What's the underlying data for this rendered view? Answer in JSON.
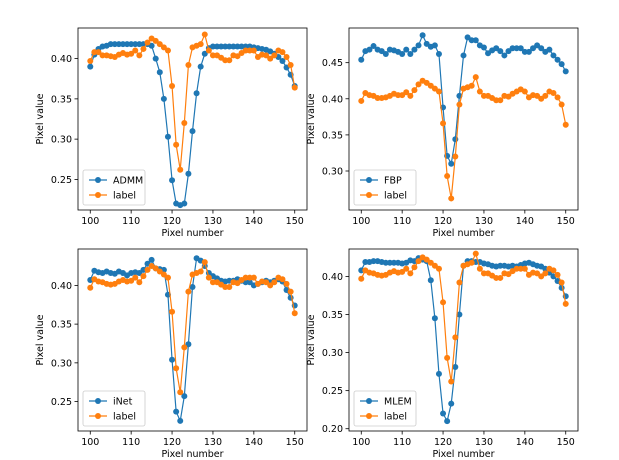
{
  "colors": {
    "primary": "#1f77b4",
    "label": "#ff7f0e"
  },
  "chart_data": [
    {
      "type": "line",
      "xlabel": "Pixel number",
      "ylabel": "Pixel value",
      "xlim": [
        97,
        153
      ],
      "ylim": [
        0.212,
        0.438
      ],
      "xticks": [
        100,
        110,
        120,
        130,
        140,
        150
      ],
      "yticks": [
        0.25,
        0.3,
        0.35,
        0.4
      ],
      "ytick_labels": [
        "0.25",
        "0.30",
        "0.35",
        "0.40"
      ],
      "legend_position": "lower-left",
      "x": [
        100,
        101,
        102,
        103,
        104,
        105,
        106,
        107,
        108,
        109,
        110,
        111,
        112,
        113,
        114,
        115,
        116,
        117,
        118,
        119,
        120,
        121,
        122,
        123,
        124,
        125,
        126,
        127,
        128,
        129,
        130,
        131,
        132,
        133,
        134,
        135,
        136,
        137,
        138,
        139,
        140,
        141,
        142,
        143,
        144,
        145,
        146,
        147,
        148,
        149,
        150
      ],
      "series": [
        {
          "name": "ADMM",
          "color": "#1f77b4",
          "values": [
            0.39,
            0.405,
            0.412,
            0.415,
            0.416,
            0.418,
            0.418,
            0.418,
            0.418,
            0.418,
            0.418,
            0.418,
            0.418,
            0.418,
            0.418,
            0.416,
            0.4,
            0.383,
            0.35,
            0.303,
            0.249,
            0.22,
            0.218,
            0.22,
            0.257,
            0.31,
            0.357,
            0.39,
            0.406,
            0.413,
            0.415,
            0.415,
            0.415,
            0.415,
            0.415,
            0.415,
            0.415,
            0.415,
            0.415,
            0.415,
            0.414,
            0.413,
            0.412,
            0.411,
            0.409,
            0.406,
            0.402,
            0.397,
            0.389,
            0.38,
            0.366
          ]
        },
        {
          "name": "label",
          "color": "#ff7f0e",
          "values": [
            0.397,
            0.408,
            0.408,
            0.404,
            0.404,
            0.403,
            0.402,
            0.405,
            0.407,
            0.405,
            0.406,
            0.41,
            0.404,
            0.412,
            0.42,
            0.425,
            0.422,
            0.418,
            0.414,
            0.41,
            0.366,
            0.293,
            0.262,
            0.32,
            0.392,
            0.414,
            0.416,
            0.418,
            0.43,
            0.41,
            0.404,
            0.404,
            0.401,
            0.398,
            0.398,
            0.404,
            0.403,
            0.407,
            0.41,
            0.41,
            0.41,
            0.402,
            0.405,
            0.404,
            0.4,
            0.404,
            0.41,
            0.408,
            0.402,
            0.392,
            0.364
          ]
        }
      ]
    },
    {
      "type": "line",
      "xlabel": "Pixel number",
      "ylabel": "Pixel value",
      "xlim": [
        97,
        153
      ],
      "ylim": [
        0.246,
        0.498
      ],
      "xticks": [
        100,
        110,
        120,
        130,
        140,
        150
      ],
      "yticks": [
        0.3,
        0.35,
        0.4,
        0.45
      ],
      "ytick_labels": [
        "0.30",
        "0.35",
        "0.40",
        "0.45"
      ],
      "legend_position": "lower-left",
      "x": [
        100,
        101,
        102,
        103,
        104,
        105,
        106,
        107,
        108,
        109,
        110,
        111,
        112,
        113,
        114,
        115,
        116,
        117,
        118,
        119,
        120,
        121,
        122,
        123,
        124,
        125,
        126,
        127,
        128,
        129,
        130,
        131,
        132,
        133,
        134,
        135,
        136,
        137,
        138,
        139,
        140,
        141,
        142,
        143,
        144,
        145,
        146,
        147,
        148,
        149,
        150
      ],
      "series": [
        {
          "name": "FBP",
          "color": "#1f77b4",
          "values": [
            0.454,
            0.466,
            0.468,
            0.473,
            0.468,
            0.466,
            0.462,
            0.468,
            0.467,
            0.465,
            0.462,
            0.468,
            0.462,
            0.468,
            0.474,
            0.488,
            0.476,
            0.472,
            0.474,
            0.462,
            0.388,
            0.321,
            0.31,
            0.344,
            0.404,
            0.46,
            0.485,
            0.481,
            0.481,
            0.474,
            0.471,
            0.463,
            0.467,
            0.47,
            0.466,
            0.46,
            0.466,
            0.47,
            0.47,
            0.47,
            0.465,
            0.465,
            0.47,
            0.474,
            0.47,
            0.465,
            0.468,
            0.46,
            0.454,
            0.448,
            0.438
          ]
        },
        {
          "name": "label",
          "color": "#ff7f0e",
          "values": [
            0.397,
            0.408,
            0.405,
            0.404,
            0.401,
            0.401,
            0.402,
            0.404,
            0.407,
            0.405,
            0.405,
            0.409,
            0.404,
            0.412,
            0.42,
            0.425,
            0.422,
            0.418,
            0.414,
            0.41,
            0.366,
            0.293,
            0.262,
            0.32,
            0.392,
            0.414,
            0.416,
            0.418,
            0.43,
            0.41,
            0.404,
            0.404,
            0.401,
            0.398,
            0.398,
            0.404,
            0.403,
            0.407,
            0.41,
            0.413,
            0.41,
            0.402,
            0.405,
            0.404,
            0.4,
            0.404,
            0.41,
            0.408,
            0.402,
            0.392,
            0.364
          ]
        }
      ]
    },
    {
      "type": "line",
      "xlabel": "Pixel number",
      "ylabel": "Pixel value",
      "xlim": [
        97,
        153
      ],
      "ylim": [
        0.212,
        0.447
      ],
      "xticks": [
        100,
        110,
        120,
        130,
        140,
        150
      ],
      "yticks": [
        0.25,
        0.3,
        0.35,
        0.4
      ],
      "ytick_labels": [
        "0.25",
        "0.30",
        "0.35",
        "0.40"
      ],
      "legend_position": "lower-left",
      "x": [
        100,
        101,
        102,
        103,
        104,
        105,
        106,
        107,
        108,
        109,
        110,
        111,
        112,
        113,
        114,
        115,
        116,
        117,
        118,
        119,
        120,
        121,
        122,
        123,
        124,
        125,
        126,
        127,
        128,
        129,
        130,
        131,
        132,
        133,
        134,
        135,
        136,
        137,
        138,
        139,
        140,
        141,
        142,
        143,
        144,
        145,
        146,
        147,
        148,
        149,
        150
      ],
      "series": [
        {
          "name": "iNet",
          "color": "#1f77b4",
          "values": [
            0.407,
            0.419,
            0.417,
            0.416,
            0.418,
            0.416,
            0.415,
            0.418,
            0.416,
            0.413,
            0.416,
            0.417,
            0.416,
            0.42,
            0.428,
            0.433,
            0.422,
            0.421,
            0.42,
            0.388,
            0.304,
            0.237,
            0.225,
            0.257,
            0.324,
            0.398,
            0.435,
            0.432,
            0.425,
            0.416,
            0.412,
            0.409,
            0.406,
            0.405,
            0.406,
            0.406,
            0.408,
            0.406,
            0.404,
            0.404,
            0.4,
            0.402,
            0.404,
            0.406,
            0.404,
            0.406,
            0.408,
            0.405,
            0.394,
            0.384,
            0.374
          ]
        },
        {
          "name": "label",
          "color": "#ff7f0e",
          "values": [
            0.397,
            0.408,
            0.405,
            0.404,
            0.402,
            0.401,
            0.402,
            0.405,
            0.407,
            0.405,
            0.406,
            0.41,
            0.404,
            0.412,
            0.42,
            0.425,
            0.422,
            0.418,
            0.414,
            0.41,
            0.366,
            0.293,
            0.262,
            0.32,
            0.392,
            0.414,
            0.416,
            0.418,
            0.43,
            0.41,
            0.404,
            0.404,
            0.401,
            0.398,
            0.398,
            0.404,
            0.403,
            0.407,
            0.41,
            0.41,
            0.41,
            0.402,
            0.405,
            0.404,
            0.4,
            0.404,
            0.41,
            0.408,
            0.402,
            0.392,
            0.364
          ]
        }
      ]
    },
    {
      "type": "line",
      "xlabel": "Pixel number",
      "ylabel": "Pixel value",
      "xlim": [
        97,
        153
      ],
      "ylim": [
        0.197,
        0.436
      ],
      "xticks": [
        100,
        110,
        120,
        130,
        140,
        150
      ],
      "yticks": [
        0.2,
        0.25,
        0.3,
        0.35,
        0.4
      ],
      "ytick_labels": [
        "0.20",
        "0.25",
        "0.30",
        "0.35",
        "0.40"
      ],
      "legend_position": "lower-left",
      "x": [
        100,
        101,
        102,
        103,
        104,
        105,
        106,
        107,
        108,
        109,
        110,
        111,
        112,
        113,
        114,
        115,
        116,
        117,
        118,
        119,
        120,
        121,
        122,
        123,
        124,
        125,
        126,
        127,
        128,
        129,
        130,
        131,
        132,
        133,
        134,
        135,
        136,
        137,
        138,
        139,
        140,
        141,
        142,
        143,
        144,
        145,
        146,
        147,
        148,
        149,
        150
      ],
      "series": [
        {
          "name": "MLEM",
          "color": "#1f77b4",
          "values": [
            0.408,
            0.419,
            0.419,
            0.42,
            0.42,
            0.419,
            0.418,
            0.418,
            0.418,
            0.418,
            0.417,
            0.418,
            0.421,
            0.42,
            0.424,
            0.422,
            0.42,
            0.395,
            0.345,
            0.272,
            0.22,
            0.21,
            0.233,
            0.281,
            0.35,
            0.414,
            0.42,
            0.42,
            0.419,
            0.419,
            0.417,
            0.416,
            0.414,
            0.413,
            0.414,
            0.414,
            0.413,
            0.414,
            0.413,
            0.415,
            0.417,
            0.418,
            0.416,
            0.414,
            0.413,
            0.41,
            0.405,
            0.4,
            0.394,
            0.385,
            0.374
          ]
        },
        {
          "name": "label",
          "color": "#ff7f0e",
          "values": [
            0.397,
            0.408,
            0.405,
            0.404,
            0.402,
            0.401,
            0.402,
            0.405,
            0.407,
            0.405,
            0.406,
            0.41,
            0.404,
            0.412,
            0.42,
            0.425,
            0.422,
            0.418,
            0.414,
            0.41,
            0.366,
            0.293,
            0.262,
            0.32,
            0.392,
            0.414,
            0.416,
            0.418,
            0.43,
            0.41,
            0.404,
            0.404,
            0.401,
            0.398,
            0.398,
            0.404,
            0.403,
            0.407,
            0.41,
            0.41,
            0.41,
            0.402,
            0.405,
            0.404,
            0.4,
            0.404,
            0.41,
            0.408,
            0.402,
            0.392,
            0.364
          ]
        }
      ]
    }
  ]
}
